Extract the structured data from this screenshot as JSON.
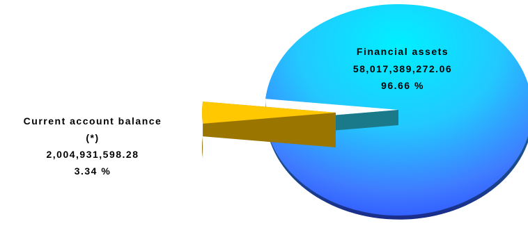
{
  "chart_data": {
    "type": "pie",
    "style": "3d-exploded",
    "slices": [
      {
        "name": "Financial assets",
        "value": 58017389272.06,
        "value_label": "58,017,389,272.06",
        "percent_label": "96.66 %",
        "percent": 96.66,
        "exploded": false
      },
      {
        "name": "Current account balance (*)",
        "value": 2004931598.28,
        "value_label": "2,004,931,598.28",
        "percent_label": "3.34 %",
        "percent": 3.34,
        "exploded": true
      }
    ],
    "legend": "none",
    "colors": {
      "financial_top": "#00e5ff",
      "financial_mid": "#3a9bff",
      "financial_bottom": "#2e5bff",
      "financial_side": "#1f2f8f",
      "current_top": "#ffc600",
      "current_side": "#8c6a00"
    }
  },
  "labels": {
    "financial": {
      "line1": "Financial assets",
      "line2": "58,017,389,272.06",
      "line3": "96.66 %"
    },
    "current": {
      "line1": "Current account balance",
      "line2": "(*)",
      "line3": "2,004,931,598.28",
      "line4": "3.34 %"
    }
  }
}
